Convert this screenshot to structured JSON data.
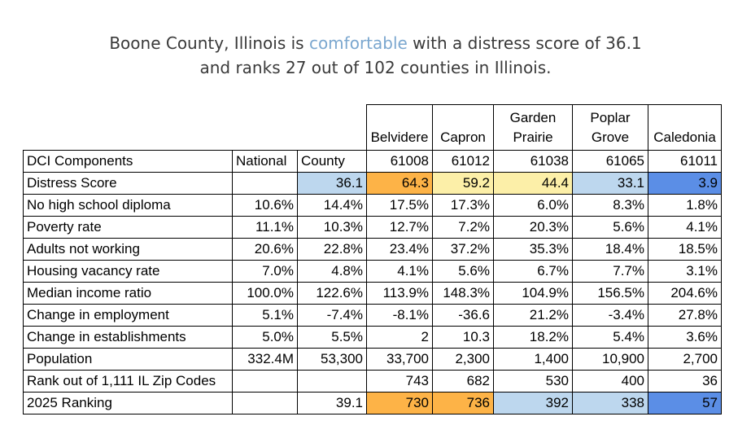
{
  "headline": {
    "line1_prefix": "Boone County, Illinois is ",
    "status_word": "comfortable",
    "line1_suffix": " with a distress score of 36.1",
    "line2": "and ranks 27  out of 102 counties in Illinois."
  },
  "colors": {
    "headline_text": "#3a3a3a",
    "status_word": "#7ba7cf",
    "light_blue": "#bdd7ee",
    "blue": "#5b8ee6",
    "orange": "#fdb347",
    "yellow": "#fcefa8"
  },
  "table": {
    "zip_names": [
      {
        "line1": "",
        "line2": "Belvidere"
      },
      {
        "line1": "",
        "line2": "Capron"
      },
      {
        "line1": "Garden",
        "line2": "Prairie"
      },
      {
        "line1": "Poplar",
        "line2": "Grove"
      },
      {
        "line1": "",
        "line2": "Caledonia"
      }
    ],
    "header_row": {
      "label": "DCI Components",
      "national": "National",
      "county": "County",
      "zips": [
        "61008",
        "61012",
        "61038",
        "61065",
        "61011"
      ]
    },
    "rows": [
      {
        "label": "Distress Score",
        "national": "",
        "county": "36.1",
        "zips": [
          "64.3",
          "59.2",
          "44.4",
          "33.1",
          "3.9"
        ]
      },
      {
        "label": "No high school diploma",
        "national": "10.6%",
        "county": "14.4%",
        "zips": [
          "17.5%",
          "17.3%",
          "6.0%",
          "8.3%",
          "1.8%"
        ]
      },
      {
        "label": "Poverty rate",
        "national": "11.1%",
        "county": "10.3%",
        "zips": [
          "12.7%",
          "7.2%",
          "20.3%",
          "5.6%",
          "4.1%"
        ]
      },
      {
        "label": "Adults not working",
        "national": "20.6%",
        "county": "22.8%",
        "zips": [
          "23.4%",
          "37.2%",
          "35.3%",
          "18.4%",
          "18.5%"
        ]
      },
      {
        "label": "Housing vacancy rate",
        "national": "7.0%",
        "county": "4.8%",
        "zips": [
          "4.1%",
          "5.6%",
          "6.7%",
          "7.7%",
          "3.1%"
        ]
      },
      {
        "label": "Median income ratio",
        "national": "100.0%",
        "county": "122.6%",
        "zips": [
          "113.9%",
          "148.3%",
          "104.9%",
          "156.5%",
          "204.6%"
        ]
      },
      {
        "label": "Change in employment",
        "national": "5.1%",
        "county": "-7.4%",
        "zips": [
          "-8.1%",
          "-36.6",
          "21.2%",
          "-3.4%",
          "27.8%"
        ]
      },
      {
        "label": "Change in establishments",
        "national": "5.0%",
        "county": "5.5%",
        "zips": [
          "2",
          "10.3",
          "18.2%",
          "5.4%",
          "3.6%"
        ]
      },
      {
        "label": "Population",
        "national": "332.4M",
        "county": "53,300",
        "zips": [
          "33,700",
          "2,300",
          "1,400",
          "10,900",
          "2,700"
        ]
      },
      {
        "label": "Rank out of 1,111 IL Zip Codes",
        "national": "",
        "county": "",
        "zips": [
          "743",
          "682",
          "530",
          "400",
          "36"
        ]
      },
      {
        "label": "2025 Ranking",
        "national": "",
        "county": "39.1",
        "zips": [
          "730",
          "736",
          "392",
          "338",
          "57"
        ]
      }
    ]
  }
}
